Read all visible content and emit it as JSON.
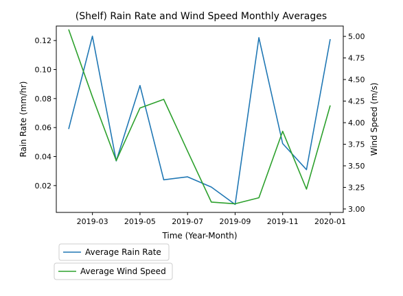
{
  "chart_data": {
    "type": "line",
    "title": "(Shelf) Rain Rate and Wind Speed Monthly Averages",
    "xlabel": "Time (Year-Month)",
    "ylabel_left": "Rain Rate (mm/hr)",
    "ylabel_right": "Wind Speed (m/s)",
    "x": [
      "2019-02",
      "2019-03",
      "2019-04",
      "2019-05",
      "2019-06",
      "2019-07",
      "2019-08",
      "2019-09",
      "2019-10",
      "2019-11",
      "2019-12",
      "2020-01"
    ],
    "x_tick_labels": [
      "2019-03",
      "2019-05",
      "2019-07",
      "2019-09",
      "2019-11",
      "2020-01"
    ],
    "x_tick_positions": [
      1,
      3,
      5,
      7,
      9,
      11
    ],
    "y_left_ticks": [
      "0.02",
      "0.04",
      "0.06",
      "0.08",
      "0.10",
      "0.12"
    ],
    "y_left_tick_values": [
      0.02,
      0.04,
      0.06,
      0.08,
      0.1,
      0.12
    ],
    "y_right_ticks": [
      "3.00",
      "3.25",
      "3.50",
      "3.75",
      "4.00",
      "4.25",
      "4.50",
      "4.75",
      "5.00"
    ],
    "y_right_tick_values": [
      3.0,
      3.25,
      3.5,
      3.75,
      4.0,
      4.25,
      4.5,
      4.75,
      5.0
    ],
    "y_left_range": [
      0.0015,
      0.13
    ],
    "y_right_range": [
      2.96,
      5.12
    ],
    "grid": false,
    "legend_placement": "bottom-left, below plot",
    "series": [
      {
        "name": "Average Rain Rate",
        "axis": "left",
        "color": "#1f77b4",
        "values": [
          0.059,
          0.123,
          0.037,
          0.089,
          0.024,
          0.026,
          0.019,
          0.007,
          0.122,
          0.049,
          0.031,
          0.121
        ]
      },
      {
        "name": "Average Wind Speed",
        "axis": "right",
        "color": "#2ca02c",
        "values": [
          5.08,
          4.3,
          3.56,
          4.17,
          4.27,
          3.67,
          3.08,
          3.06,
          3.13,
          3.9,
          3.23,
          4.2
        ]
      }
    ]
  }
}
